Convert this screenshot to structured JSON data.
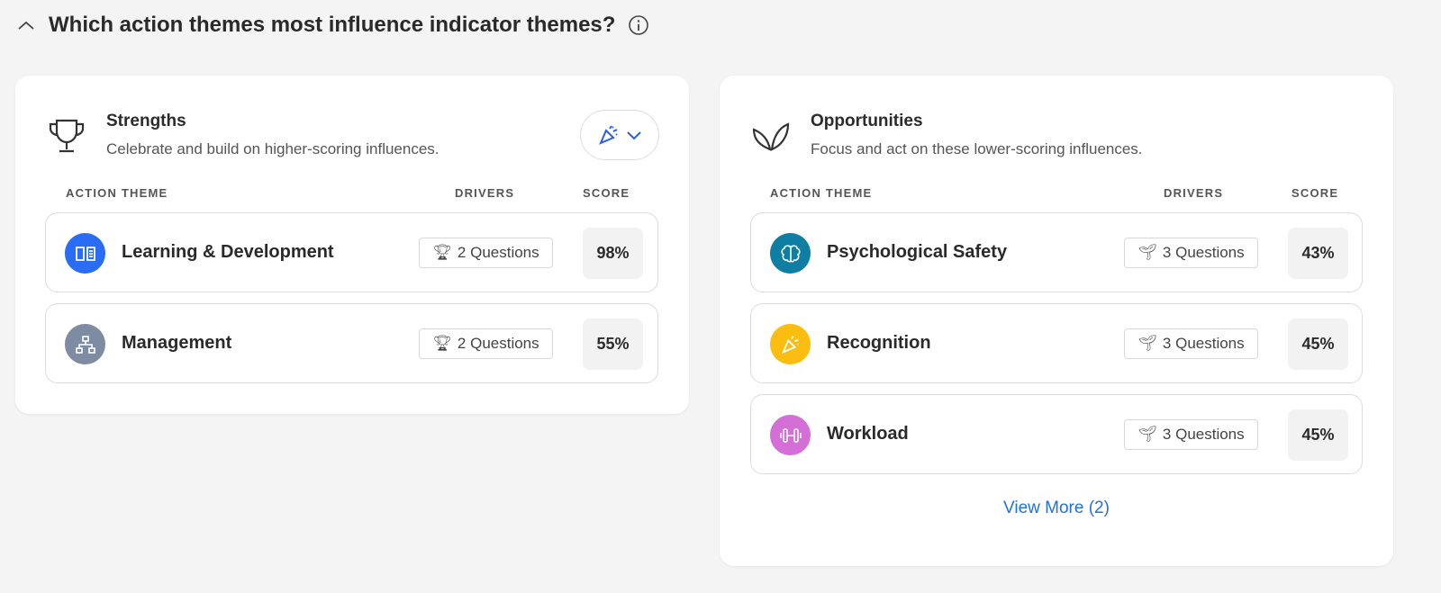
{
  "header": {
    "title": "Which action themes most influence indicator themes?",
    "collapse_icon": "chevron-up-icon",
    "info_icon": "info-icon"
  },
  "strengths": {
    "title": "Strengths",
    "subtitle": "Celebrate and build on higher-scoring influences.",
    "icon": "trophy-icon",
    "filter_icon": "party-popper-icon",
    "columns": {
      "theme": "ACTION THEME",
      "drivers": "DRIVERS",
      "score": "SCORE"
    },
    "rows": [
      {
        "name": "Learning & Development",
        "drivers": "2 Questions",
        "score": "98%",
        "color": "#2a6df4",
        "icon": "book-icon"
      },
      {
        "name": "Management",
        "drivers": "2 Questions",
        "score": "55%",
        "color": "#7d8ba3",
        "icon": "org-chart-icon"
      }
    ]
  },
  "opportunities": {
    "title": "Opportunities",
    "subtitle": "Focus and act on these lower-scoring influences.",
    "icon": "sprout-icon",
    "columns": {
      "theme": "ACTION THEME",
      "drivers": "DRIVERS",
      "score": "SCORE"
    },
    "rows": [
      {
        "name": "Psychological Safety",
        "drivers": "3 Questions",
        "score": "43%",
        "color": "#0e7ea3",
        "icon": "brain-icon"
      },
      {
        "name": "Recognition",
        "drivers": "3 Questions",
        "score": "45%",
        "color": "#fbbd10",
        "icon": "party-popper-icon"
      },
      {
        "name": "Workload",
        "drivers": "3 Questions",
        "score": "45%",
        "color": "#d36fd6",
        "icon": "dumbbell-icon"
      }
    ],
    "view_more": "View More (2)"
  },
  "accent": "#1f6fe5"
}
